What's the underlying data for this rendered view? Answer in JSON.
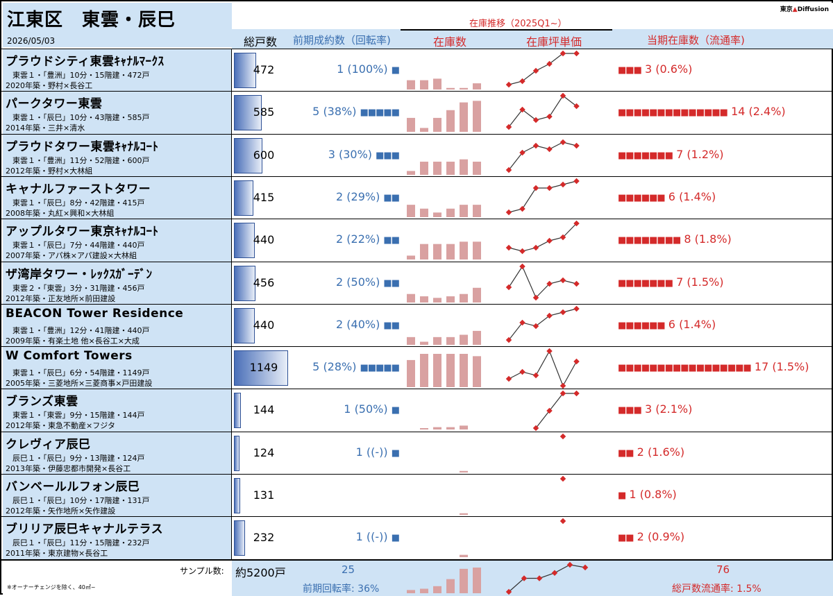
{
  "header": {
    "ward_area": "江東区　東雲・辰巳",
    "date": "2026/05/03",
    "col_units": "総戸数",
    "col_prev": "前期成約数（回転率)",
    "col_trend": "在庫推移（2025Q1~）",
    "col_inventory": "在庫数",
    "col_tsubo": "在庫坪単価",
    "col_current": "当期在庫数（流通率)",
    "logo_text": "東京",
    "logo_brand": "Diffusion"
  },
  "rows": [
    {
      "name": "プラウドシティ東雲ｷｬﾅﾙﾏｰｸｽ",
      "d1": "東雲１・「豊洲」10分・15階建・472戸",
      "d2": "2020年築・野村×長谷工",
      "units": "472",
      "units_n": 472,
      "prev": "1 (100%)",
      "prev_sq": "■",
      "cur": "3 (0.6%)",
      "cur_sq": "■■■",
      "inv": [
        1.2,
        1.2,
        1.4,
        0.2,
        0.2,
        0.8
      ],
      "price": [
        0.1,
        0.2,
        0.5,
        0.7,
        1.0,
        1.0
      ]
    },
    {
      "name": "パークタワー東雲",
      "d1": "東雲１・「辰巳」10分・43階建・585戸",
      "d2": "2014年築・三井×清水",
      "units": "585",
      "units_n": 585,
      "prev": "5 (38%)",
      "prev_sq": "■■■■■",
      "cur": "14 (2.4%)",
      "cur_sq": "■■■■■■■■■■■■■■",
      "inv": [
        1.8,
        0.5,
        1.8,
        2.8,
        3.8,
        4.0
      ],
      "price": [
        0.1,
        0.6,
        0.3,
        0.4,
        1.0,
        0.7
      ]
    },
    {
      "name": "プラウドタワー東雲ｷｬﾅﾙｺｰﾄ",
      "d1": "東雲１・「豊洲」11分・52階建・600戸",
      "d2": "2012年築・野村×大林組",
      "units": "600",
      "units_n": 600,
      "prev": "3 (30%)",
      "prev_sq": "■■■",
      "cur": "7 (1.2%)",
      "cur_sq": "■■■■■■■",
      "inv": [
        0.5,
        1.7,
        1.7,
        1.7,
        2.0,
        1.7
      ],
      "price": [
        0.1,
        0.6,
        0.8,
        0.7,
        0.9,
        0.8
      ]
    },
    {
      "name": "キャナルファーストタワー",
      "d1": "東雲１・「辰巳」8分・42階建・415戸",
      "d2": "2008年築・丸紅×興和×大林組",
      "units": "415",
      "units_n": 415,
      "prev": "2 (29%)",
      "prev_sq": "■■",
      "cur": "6 (1.4%)",
      "cur_sq": "■■■■■■",
      "inv": [
        1.6,
        1.1,
        0.6,
        1.1,
        1.6,
        1.6
      ],
      "price": [
        0.1,
        0.2,
        0.8,
        0.8,
        0.9,
        1.0
      ]
    },
    {
      "name": "アップルタワー東京ｷｬﾅﾙｺｰﾄ",
      "d1": "東雲１・「辰巳」7分・44階建・440戸",
      "d2": "2007年築・アパ株×アパ建設×大林組",
      "units": "440",
      "units_n": 440,
      "prev": "2 (22%)",
      "prev_sq": "■■",
      "cur": "8 (1.8%)",
      "cur_sq": "■■■■■■■■",
      "inv": [
        0.5,
        2.0,
        2.0,
        2.0,
        2.3,
        2.3
      ],
      "price": [
        0.3,
        0.2,
        0.3,
        0.5,
        0.6,
        1.0
      ]
    },
    {
      "name": "ザ湾岸タワー・ﾚｯｸｽｶﾞｰﾃﾞﾝ",
      "d1": "東雲２・「東雲」3分・31階建・456戸",
      "d2": "2012年築・正友地所×前田建設",
      "units": "456",
      "units_n": 456,
      "prev": "2 (50%)",
      "prev_sq": "■■",
      "cur": "7 (1.5%)",
      "cur_sq": "■■■■■■■",
      "inv": [
        1.1,
        0.8,
        0.6,
        0.8,
        1.1,
        1.9
      ],
      "price": [
        0.4,
        1.0,
        0.1,
        0.5,
        0.6,
        0.5
      ]
    },
    {
      "name": "BEACON Tower Residence",
      "d1": "東雲１・「豊洲」12分・41階建・440戸",
      "d2": "2009年築・有楽土地 他×長谷工×大成",
      "units": "440",
      "units_n": 440,
      "prev": "2 (40%)",
      "prev_sq": "■■",
      "cur": "6 (1.4%)",
      "cur_sq": "■■■■■■",
      "inv": [
        1.0,
        0.4,
        1.0,
        1.0,
        1.3,
        1.8
      ],
      "price": [
        0.1,
        0.6,
        0.5,
        0.8,
        0.9,
        1.0
      ]
    },
    {
      "name": "W Comfort Towers",
      "d1": "東雲１・「辰巳」6分・54階建・1149戸",
      "d2": "2005年築・三菱地所×三菱商事×戸田建設",
      "units": "1149",
      "units_n": 1149,
      "prev": "5 (28%)",
      "prev_sq": "■■■■■",
      "cur": "17 (1.5%)",
      "cur_sq": "■■■■■■■■■■■■■■■■■",
      "inv": [
        3.5,
        4.3,
        4.3,
        4.3,
        4.3,
        4.0
      ],
      "price": [
        0.2,
        0.4,
        0.3,
        1.0,
        0.0,
        0.7
      ]
    },
    {
      "name": "ブランズ東雲",
      "d1": "東雲１・「東雲」9分・15階建・144戸",
      "d2": "2012年築・東急不動産×フジタ",
      "units": "144",
      "units_n": 144,
      "prev": "1 (50%)",
      "prev_sq": "■",
      "cur": "3 (2.1%)",
      "cur_sq": "■■■",
      "inv": [
        0,
        0.1,
        0.3,
        0.3,
        0.5,
        0
      ],
      "price": [
        null,
        null,
        0.0,
        0.5,
        1.0,
        1.0
      ]
    },
    {
      "name": "クレヴィア辰巳",
      "d1": "辰巳１・「辰巳」9分・13階建・124戸",
      "d2": "2013年築・伊藤忠都市開発×長谷工",
      "units": "124",
      "units_n": 124,
      "prev": "1 ((-))",
      "prev_sq": "■",
      "cur": "2 (1.6%)",
      "cur_sq": "■■",
      "inv": [
        0,
        0,
        0,
        0,
        0.2,
        0
      ],
      "price": [
        null,
        null,
        null,
        null,
        1.0,
        null
      ]
    },
    {
      "name": "バンベールルフォン辰巳",
      "d1": "辰巳１・「辰巳」10分・17階建・131戸",
      "d2": "2012年築・矢作地所×矢作建設",
      "units": "131",
      "units_n": 131,
      "prev": "",
      "prev_sq": "",
      "cur": "1 (0.8%)",
      "cur_sq": "■",
      "inv": [
        0,
        0,
        0,
        0,
        0.2,
        0
      ],
      "price": [
        null,
        null,
        null,
        null,
        1.0,
        null
      ]
    },
    {
      "name": "ブリリア辰巳キャナルテラス",
      "d1": "辰巳１・「辰巳」11分・15階建・232戸",
      "d2": "2011年築・東京建物×長谷工",
      "units": "232",
      "units_n": 232,
      "prev": "1 ((-))",
      "prev_sq": "■",
      "cur": "2 (0.9%)",
      "cur_sq": "■■",
      "inv": [
        0,
        0,
        0,
        0,
        0.3,
        0
      ],
      "price": [
        null,
        null,
        null,
        null,
        1.0,
        null
      ]
    }
  ],
  "footer": {
    "sample_label": "サンプル数:",
    "total_units": "約5200戸",
    "prev_total": "25",
    "prev_rate": "前期回転率:  36%",
    "cur_total": "76",
    "cur_rate": "総戸数流通率:  1.5%",
    "note": "※オーナーチェンジを除く、40㎡~",
    "inv": [
      0.5,
      0.7,
      1.1,
      2.2,
      3.8,
      4.0
    ],
    "price": [
      0.0,
      0.5,
      0.5,
      0.7,
      1.0,
      0.9
    ]
  },
  "colors": {
    "blue": "#3a6fb0",
    "red": "#d42a2a",
    "bar": "#d9a1a1",
    "header_bg": "#cfe3f5"
  }
}
